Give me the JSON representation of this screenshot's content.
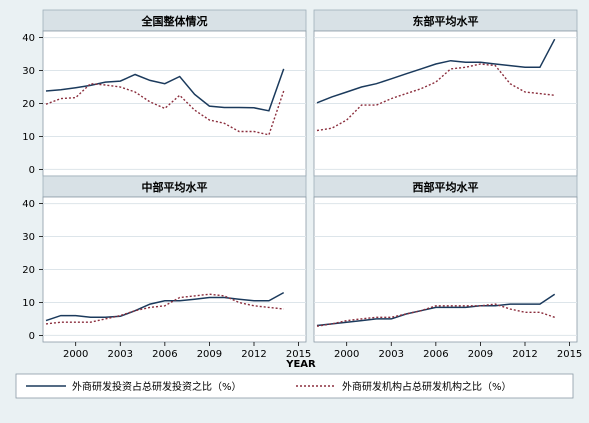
{
  "chart_data": {
    "type": "line",
    "xlabel": "YEAR",
    "x_ticks": [
      2000,
      2003,
      2006,
      2009,
      2012,
      2015
    ],
    "y_ticks": [
      0,
      10,
      20,
      30,
      40
    ],
    "xlim": [
      1997.8,
      2015.5
    ],
    "ylim": [
      -2,
      42
    ],
    "grid": true,
    "legend_position": "bottom",
    "colors": {
      "outer_background": "#eaf1f3",
      "panel_background": "#ffffff",
      "title_strip": "#d8e1e6",
      "grid": "#dde5ea",
      "series_1": "#1b3a5c",
      "series_2": "#8b2e3d"
    },
    "series_names": [
      "外商研发投资占总研发投资之比（%）",
      "外商研发机构占总研发机构之比（%）"
    ],
    "x": [
      1998,
      1999,
      2000,
      2001,
      2002,
      2003,
      2004,
      2005,
      2006,
      2007,
      2008,
      2009,
      2010,
      2011,
      2012,
      2013,
      2014
    ],
    "panels": [
      {
        "title": "全国整体情况",
        "series": [
          {
            "values": [
              23.8,
              24.2,
              24.8,
              25.5,
              26.5,
              26.8,
              28.8,
              27.0,
              26.0,
              28.2,
              22.8,
              19.2,
              18.8,
              18.8,
              18.7,
              17.8,
              30.5
            ]
          },
          {
            "values": [
              19.8,
              21.5,
              21.8,
              26.0,
              25.6,
              25.0,
              23.5,
              20.5,
              18.5,
              22.5,
              18.0,
              15.0,
              14.0,
              11.5,
              11.5,
              10.5,
              23.8
            ]
          }
        ]
      },
      {
        "title": "东部平均水平",
        "series": [
          {
            "values": [
              20.2,
              22.0,
              23.5,
              25.0,
              26.0,
              27.5,
              29.0,
              30.5,
              32.0,
              33.0,
              32.5,
              32.5,
              32.0,
              31.5,
              31.0,
              31.0,
              39.5
            ]
          },
          {
            "values": [
              11.8,
              12.5,
              15.0,
              19.5,
              19.5,
              21.5,
              23.0,
              24.5,
              26.5,
              30.5,
              31.0,
              32.0,
              31.5,
              26.0,
              23.5,
              23.0,
              22.5
            ]
          }
        ]
      },
      {
        "title": "中部平均水平",
        "series": [
          {
            "values": [
              4.5,
              6.0,
              6.0,
              5.5,
              5.5,
              5.8,
              7.5,
              9.5,
              10.5,
              10.5,
              11.0,
              11.5,
              11.5,
              11.0,
              10.5,
              10.5,
              13.0
            ]
          },
          {
            "values": [
              3.5,
              4.0,
              4.0,
              4.0,
              5.0,
              6.0,
              7.5,
              8.5,
              9.0,
              11.5,
              12.0,
              12.5,
              12.0,
              10.0,
              9.0,
              8.5,
              8.0
            ]
          }
        ]
      },
      {
        "title": "西部平均水平",
        "series": [
          {
            "values": [
              3.0,
              3.5,
              4.0,
              4.5,
              5.0,
              5.0,
              6.5,
              7.5,
              8.5,
              8.5,
              8.5,
              9.0,
              9.0,
              9.5,
              9.5,
              9.5,
              12.5
            ]
          },
          {
            "values": [
              2.8,
              3.5,
              4.5,
              5.0,
              5.5,
              5.5,
              6.5,
              7.5,
              9.0,
              9.0,
              9.0,
              9.0,
              9.5,
              8.0,
              7.0,
              7.0,
              5.5
            ]
          }
        ]
      }
    ]
  }
}
